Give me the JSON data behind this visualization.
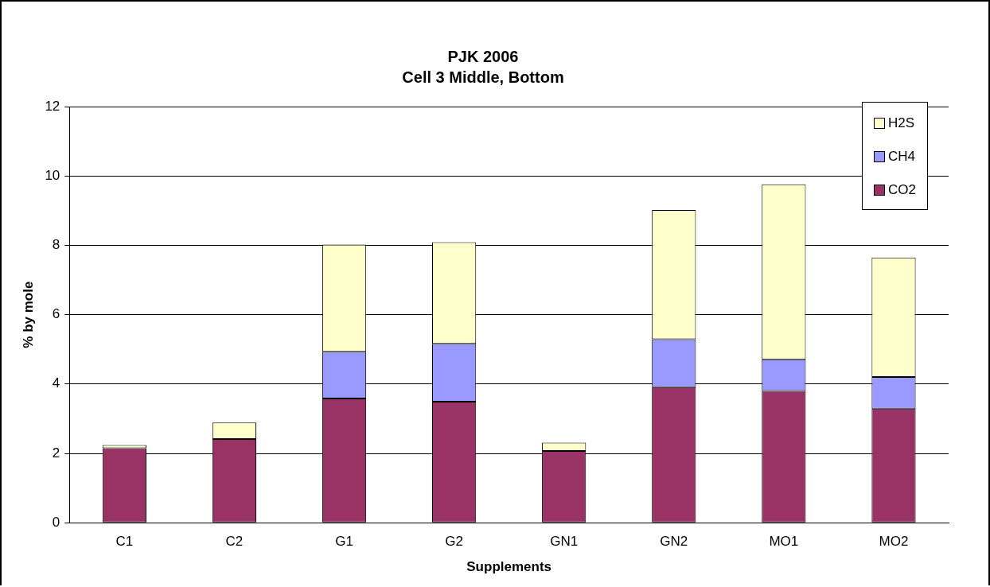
{
  "chart_data": {
    "type": "bar",
    "title": "PJK 2006",
    "subtitle": "Cell 3 Middle, Bottom",
    "xlabel": "Supplements",
    "ylabel": "% by mole",
    "categories": [
      "C1",
      "C2",
      "G1",
      "G2",
      "GN1",
      "GN2",
      "MO1",
      "MO2"
    ],
    "series": [
      {
        "name": "CO2",
        "color": "#993366",
        "values": [
          2.15,
          2.41,
          3.58,
          3.49,
          2.07,
          3.91,
          3.8,
          3.29
        ]
      },
      {
        "name": "CH4",
        "color": "#9999ff",
        "values": [
          0,
          0,
          1.35,
          1.67,
          0,
          1.38,
          0.91,
          0.91
        ]
      },
      {
        "name": "H2S",
        "color": "#ffffcc",
        "values": [
          0.09,
          0.48,
          3.09,
          2.93,
          0.24,
          3.73,
          5.05,
          3.45
        ]
      }
    ],
    "stacked": true,
    "ylim": [
      0,
      12
    ],
    "yticks": [
      0,
      2,
      4,
      6,
      8,
      10,
      12
    ],
    "grid": "y",
    "legend": "top right"
  }
}
